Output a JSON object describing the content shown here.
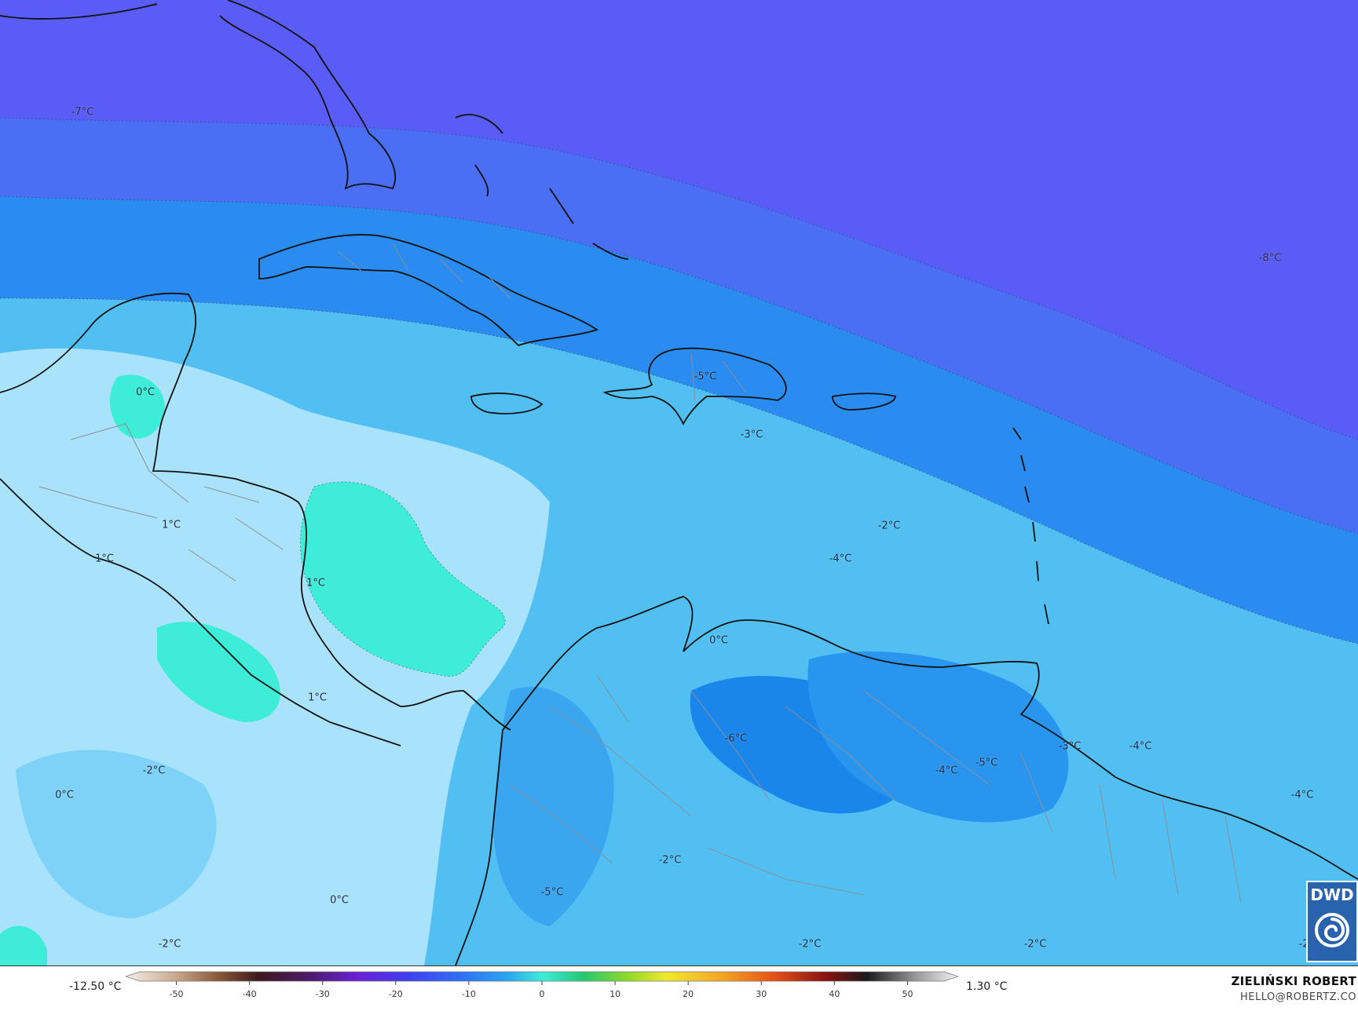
{
  "map": {
    "type": "temperature-anomaly-map",
    "region": "Caribbean",
    "colors": {
      "deep_purple": "#5a5cf8",
      "blue": "#3f8bf2",
      "mid_blue": "#1aa0ef",
      "light_blue": "#52bff2",
      "pale_blue": "#a8e3fb",
      "turquoise": "#3eedd8"
    },
    "labels": [
      {
        "text": "-7°C"
      },
      {
        "text": "-8°C"
      },
      {
        "text": "0°C"
      },
      {
        "text": "-5°C"
      },
      {
        "text": "-3°C"
      },
      {
        "text": "-2°C"
      },
      {
        "text": "-4°C"
      },
      {
        "text": "1°C"
      },
      {
        "text": "1°C"
      },
      {
        "text": "1°C"
      },
      {
        "text": "1°C"
      },
      {
        "text": "0°C"
      },
      {
        "text": "-6°C"
      },
      {
        "text": "-3°C"
      },
      {
        "text": "-4°C"
      },
      {
        "text": "-4°C"
      },
      {
        "text": "-5°C"
      },
      {
        "text": "-4°C"
      },
      {
        "text": "-2°C"
      },
      {
        "text": "0°C"
      },
      {
        "text": "-2°C"
      },
      {
        "text": "-5°C"
      },
      {
        "text": "0°C"
      },
      {
        "text": "-2°C"
      },
      {
        "text": "-2°C"
      },
      {
        "text": "-2°C"
      },
      {
        "text": "-2"
      }
    ]
  },
  "legend": {
    "min_label": "-12.50 °C",
    "max_label": "1.30 °C",
    "ticks": [
      "-50",
      "-40",
      "-30",
      "-20",
      "-10",
      "0",
      "10",
      "20",
      "30",
      "40",
      "50"
    ],
    "tick_values": [
      -50,
      -40,
      -30,
      -20,
      -10,
      0,
      10,
      20,
      30,
      40,
      50
    ],
    "range": [
      -55,
      55
    ]
  },
  "credit": {
    "name": "ZIELIŃSKI ROBERT",
    "email": "HELLO@ROBERTZ.CO"
  },
  "badge": {
    "text": "DWD"
  }
}
